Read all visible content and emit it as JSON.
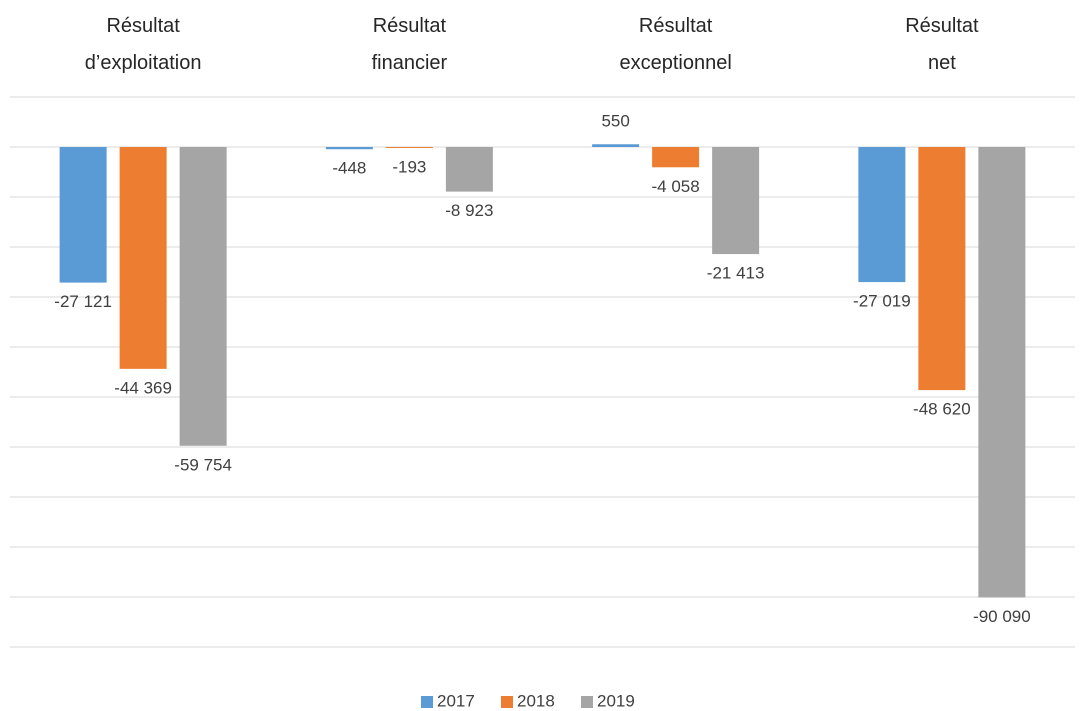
{
  "chart_data": {
    "type": "bar",
    "categories": [
      "Résultat d’exploitation",
      "Résultat financier",
      "Résultat exceptionnel",
      "Résultat net"
    ],
    "series": [
      {
        "name": "2017",
        "color": "#5b9bd5",
        "values": [
          -27121,
          -448,
          550,
          -27019
        ],
        "value_labels": [
          "-27 121",
          "-448",
          "550",
          "-27 019"
        ]
      },
      {
        "name": "2018",
        "color": "#ed7d31",
        "values": [
          -44369,
          -193,
          -4058,
          -48620
        ],
        "value_labels": [
          "-44 369",
          "-193",
          "-4 058",
          "-48 620"
        ]
      },
      {
        "name": "2019",
        "color": "#a5a5a5",
        "values": [
          -59754,
          -8923,
          -21413,
          -90090
        ],
        "value_labels": [
          "-59 754",
          "-8 923",
          "-21 413",
          "-90 090"
        ]
      }
    ],
    "ylim": [
      -100000,
      10000
    ],
    "yticks": [
      -100000,
      -90000,
      -80000,
      -70000,
      -60000,
      -50000,
      -40000,
      -30000,
      -20000,
      -10000,
      0,
      10000
    ],
    "grid": true,
    "legend": "bottom"
  }
}
